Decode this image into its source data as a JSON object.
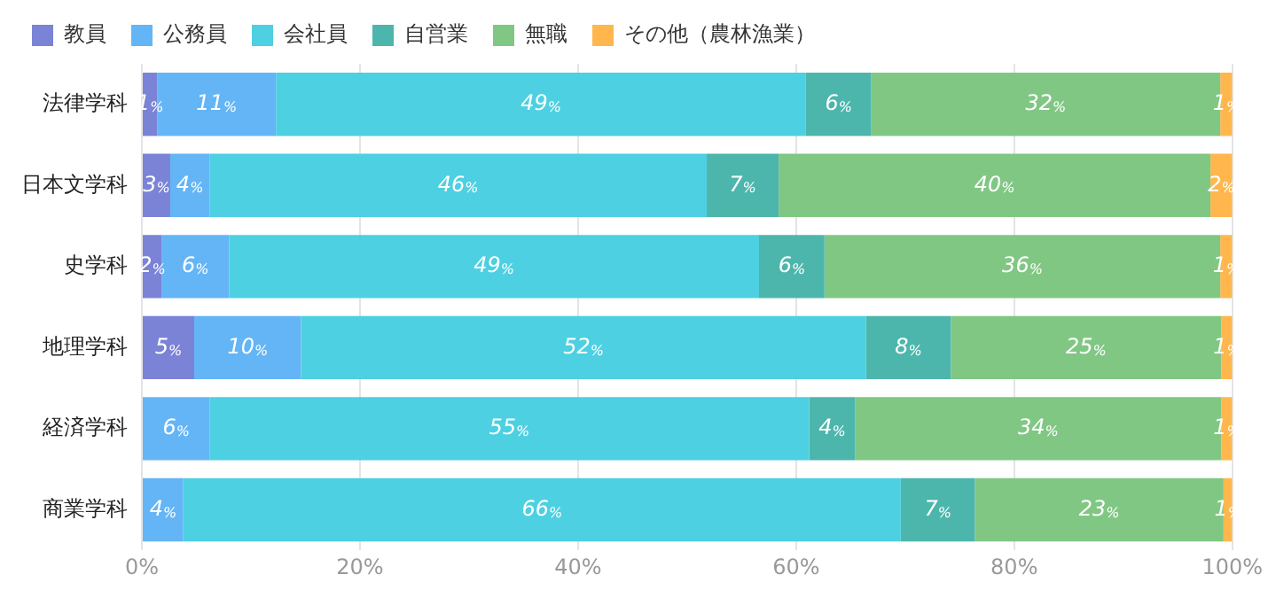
{
  "chart_data": {
    "type": "bar",
    "orientation": "horizontal",
    "stacked": true,
    "categories": [
      "法律学科",
      "日本文学科",
      "史学科",
      "地理学科",
      "経済学科",
      "商業学科"
    ],
    "series": [
      {
        "name": "教員",
        "color": "#7b83d6",
        "values": [
          1.4,
          2.6,
          1.8,
          4.8,
          null,
          null
        ],
        "value_labels": [
          "1%",
          "3%",
          "2%",
          "5%",
          null,
          null
        ]
      },
      {
        "name": "公務員",
        "color": "#64b5f6",
        "values": [
          10.9,
          3.6,
          6.2,
          9.8,
          6.2,
          3.8
        ],
        "value_labels": [
          "11%",
          "4%",
          "6%",
          "10%",
          "6%",
          "4%"
        ]
      },
      {
        "name": "会社員",
        "color": "#4dd0e1",
        "values": [
          48.6,
          45.6,
          48.6,
          51.8,
          55.0,
          65.8
        ],
        "value_labels": [
          "49%",
          "46%",
          "49%",
          "52%",
          "55%",
          "66%"
        ]
      },
      {
        "name": "自営業",
        "color": "#4db6ac",
        "values": [
          6.0,
          6.6,
          6.0,
          7.8,
          4.2,
          6.8
        ],
        "value_labels": [
          "6%",
          "7%",
          "6%",
          "8%",
          "4%",
          "7%"
        ]
      },
      {
        "name": "無職",
        "color": "#81c784",
        "values": [
          32.0,
          39.6,
          36.3,
          24.8,
          33.6,
          22.8
        ],
        "value_labels": [
          "32%",
          "40%",
          "36%",
          "25%",
          "34%",
          "23%"
        ]
      },
      {
        "name": "その他（農林漁業）",
        "color": "#ffb74d",
        "values": [
          1.1,
          2.0,
          1.1,
          1.0,
          1.0,
          0.8
        ],
        "value_labels": [
          "1%",
          "2%",
          "1%",
          "1%",
          "1%",
          "1%"
        ]
      }
    ],
    "xlim": [
      0,
      100
    ],
    "xticks": [
      {
        "value": 0,
        "label": "0%"
      },
      {
        "value": 20,
        "label": "20%"
      },
      {
        "value": 40,
        "label": "40%"
      },
      {
        "value": 60,
        "label": "60%"
      },
      {
        "value": 80,
        "label": "80%"
      },
      {
        "value": 100,
        "label": "100%"
      }
    ],
    "grid": "x",
    "legend": "top"
  }
}
